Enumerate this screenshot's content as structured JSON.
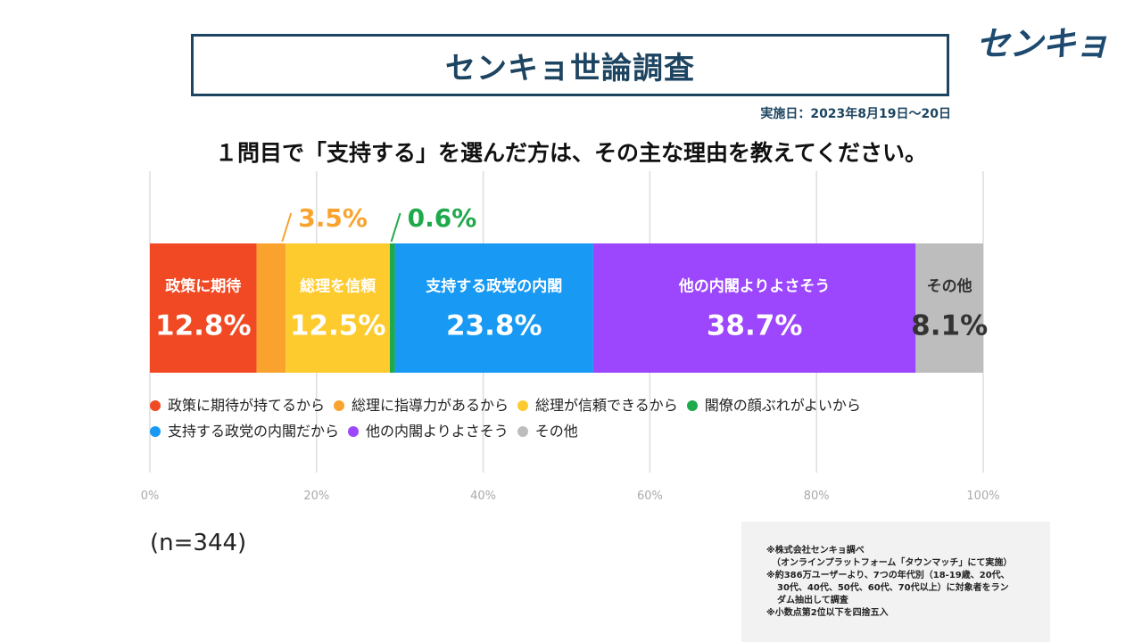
{
  "header": {
    "title": "センキョ世論調査",
    "logo_text": "センキョ",
    "survey_date": "実施日：2023年8月19日～20日"
  },
  "question": "１問目で「支持する」を選んだ方は、その主な理由を教えてください。",
  "sample_size": "(n=344)",
  "notes": [
    "※株式会社センキョ調べ",
    "（オンラインプラットフォーム「タウンマッチ」にて実施）",
    "※約386万ユーザーより、7つの年代別（18-19歳、20代、",
    "30代、40代、50代、60代、70代以上）に対象者をラン",
    "ダム抽出して調査",
    "※小数点第2位以下を四捨五入"
  ],
  "chart_data": {
    "type": "bar",
    "orientation": "horizontal-stacked-100",
    "xlim": [
      0,
      100
    ],
    "x_ticks": [
      "0%",
      "20%",
      "40%",
      "60%",
      "80%",
      "100%"
    ],
    "grid": true,
    "legend_position": "bottom",
    "series": [
      {
        "name": "政策に期待が持てるから",
        "bar_label": "政策に期待",
        "value": 12.8,
        "value_label": "12.8%",
        "color": "#f04923",
        "label_color": "#ffffff",
        "callout": false
      },
      {
        "name": "総理に指導力があるから",
        "bar_label": "",
        "value": 3.5,
        "value_label": "3.5%",
        "color": "#f9a32e",
        "label_color": "#f9a32e",
        "callout": true
      },
      {
        "name": "総理が信頼できるから",
        "bar_label": "総理を信頼",
        "value": 12.5,
        "value_label": "12.5%",
        "color": "#fecb2e",
        "label_color": "#ffffff",
        "callout": false
      },
      {
        "name": "閣僚の顔ぶれがよいから",
        "bar_label": "",
        "value": 0.6,
        "value_label": "0.6%",
        "color": "#1ea94b",
        "label_color": "#1ea94b",
        "callout": true
      },
      {
        "name": "支持する政党の内閣だから",
        "bar_label": "支持する政党の内閣",
        "value": 23.8,
        "value_label": "23.8%",
        "color": "#1799f4",
        "label_color": "#ffffff",
        "callout": false
      },
      {
        "name": "他の内閣よりよさそう",
        "bar_label": "他の内閣よりよさそう",
        "value": 38.7,
        "value_label": "38.7%",
        "color": "#9c47fd",
        "label_color": "#ffffff",
        "callout": false
      },
      {
        "name": "その他",
        "bar_label": "その他",
        "value": 8.1,
        "value_label": "8.1%",
        "color": "#bdbdbd",
        "label_color": "#333333",
        "callout": false
      }
    ],
    "legend_rows": [
      [
        0,
        1,
        2,
        3
      ],
      [
        4,
        5,
        6
      ]
    ]
  }
}
